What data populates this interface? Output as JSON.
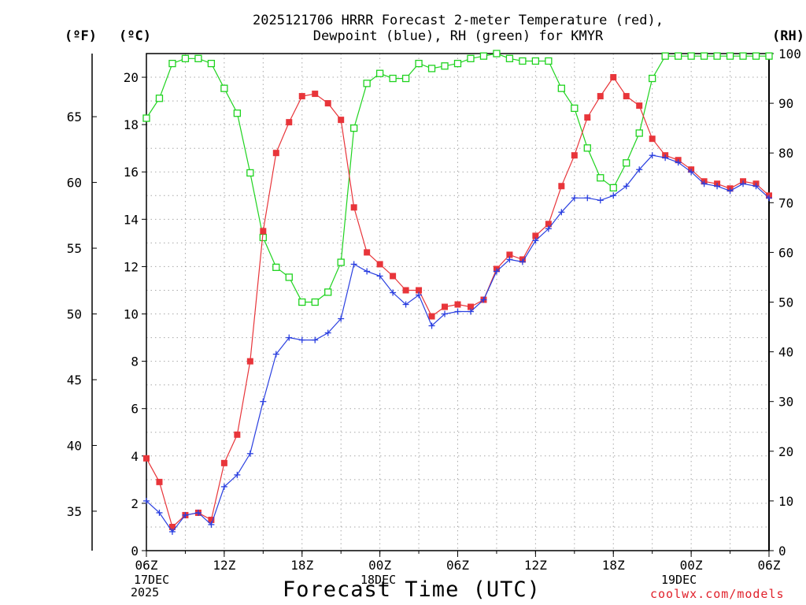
{
  "header": {
    "title_line1": "2025121706 HRRR Forecast 2-meter Temperature (red),",
    "title_line2": "Dewpoint (blue), RH (green) for KMYR",
    "unit_f": "(ºF)",
    "unit_c": "(ºC)",
    "unit_rh": "(RH)"
  },
  "footer": {
    "xlabel": "Forecast Time (UTC)",
    "credit": "coolwx.com/models",
    "date1_day": "17DEC",
    "date1_year": "2025",
    "date2_day": "18DEC",
    "date3_day": "19DEC"
  },
  "colors": {
    "temperature": "#e8353a",
    "dewpoint": "#2a3fe0",
    "rh": "#1fd31f",
    "credit": "#e0202a"
  },
  "chart_data": {
    "type": "line",
    "title": "2025121706 HRRR Forecast 2-meter Temperature (red), Dewpoint (blue), RH (green) for KMYR",
    "xlabel": "Forecast Time (UTC)",
    "x_hours": [
      0,
      1,
      2,
      3,
      4,
      5,
      6,
      7,
      8,
      9,
      10,
      11,
      12,
      13,
      14,
      15,
      16,
      17,
      18,
      19,
      20,
      21,
      22,
      23,
      24,
      25,
      26,
      27,
      28,
      29,
      30,
      31,
      32,
      33,
      34,
      35,
      36,
      37,
      38,
      39,
      40,
      41,
      42,
      43,
      44,
      45,
      46,
      47,
      48
    ],
    "x_ticks": [
      {
        "hour": 0,
        "label": "06Z"
      },
      {
        "hour": 6,
        "label": "12Z"
      },
      {
        "hour": 12,
        "label": "18Z"
      },
      {
        "hour": 18,
        "label": "00Z"
      },
      {
        "hour": 24,
        "label": "06Z"
      },
      {
        "hour": 30,
        "label": "12Z"
      },
      {
        "hour": 36,
        "label": "18Z"
      },
      {
        "hour": 42,
        "label": "00Z"
      },
      {
        "hour": 48,
        "label": "06Z"
      }
    ],
    "xlim": [
      0,
      48
    ],
    "y_left_c": {
      "label": "(ºC)",
      "lim": [
        0,
        21
      ],
      "ticks": [
        0,
        2,
        4,
        6,
        8,
        10,
        12,
        14,
        16,
        18,
        20
      ]
    },
    "y_left_f": {
      "label": "(ºF)",
      "ticks": [
        35,
        40,
        45,
        50,
        55,
        60,
        65
      ]
    },
    "y_right_rh": {
      "label": "(RH)",
      "lim": [
        0,
        100
      ],
      "ticks": [
        0,
        10,
        20,
        30,
        40,
        50,
        60,
        70,
        80,
        90,
        100
      ]
    },
    "grid": true,
    "series": [
      {
        "name": "Temperature",
        "axis": "c",
        "marker": "filled-square",
        "values": [
          3.9,
          2.9,
          1.0,
          1.5,
          1.6,
          1.3,
          3.7,
          4.9,
          8.0,
          13.5,
          16.8,
          18.1,
          19.2,
          19.3,
          18.9,
          18.2,
          14.5,
          12.6,
          12.1,
          11.6,
          11.0,
          11.0,
          9.9,
          10.3,
          10.4,
          10.3,
          10.6,
          11.9,
          12.5,
          12.3,
          13.3,
          13.8,
          15.4,
          16.7,
          18.3,
          19.2,
          20.0,
          19.2,
          18.8,
          17.4,
          16.7,
          16.5,
          16.1,
          15.6,
          15.5,
          15.3,
          15.6,
          15.5,
          15.0
        ]
      },
      {
        "name": "Dewpoint",
        "axis": "c",
        "marker": "plus",
        "values": [
          2.1,
          1.6,
          0.8,
          1.5,
          1.6,
          1.1,
          2.7,
          3.2,
          4.1,
          6.3,
          8.3,
          9.0,
          8.9,
          8.9,
          9.2,
          9.8,
          12.1,
          11.8,
          11.6,
          10.9,
          10.4,
          10.8,
          9.5,
          10.0,
          10.1,
          10.1,
          10.6,
          11.8,
          12.3,
          12.2,
          13.1,
          13.6,
          14.3,
          14.9,
          14.9,
          14.8,
          15.0,
          15.4,
          16.1,
          16.7,
          16.6,
          16.4,
          16.0,
          15.5,
          15.4,
          15.2,
          15.5,
          15.4,
          14.9
        ]
      },
      {
        "name": "RH",
        "axis": "rh",
        "marker": "open-square",
        "values": [
          87,
          91,
          98,
          99,
          99,
          98,
          93,
          88,
          76,
          63,
          57,
          55,
          50,
          50,
          52,
          58,
          85,
          94,
          96,
          95,
          95,
          98,
          97,
          97.5,
          98,
          99,
          99.5,
          100,
          99,
          98.5,
          98.5,
          98.5,
          93,
          89,
          81,
          75,
          73,
          78,
          84,
          95,
          99.5,
          99.5,
          99.5,
          99.5,
          99.5,
          99.5,
          99.5,
          99.5,
          99.5
        ]
      }
    ]
  }
}
